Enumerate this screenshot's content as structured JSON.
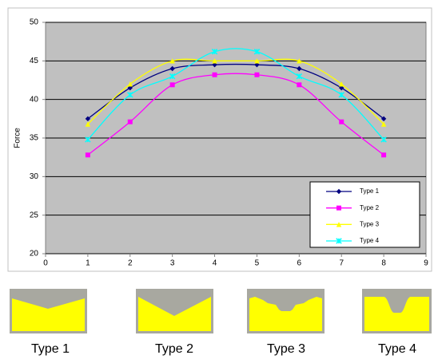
{
  "chart_data": {
    "type": "line",
    "y_label": "Force",
    "x": [
      1,
      2,
      3,
      4,
      5,
      6,
      7,
      8
    ],
    "series": [
      {
        "name": "Type 1",
        "color": "#000080",
        "marker": "diamond",
        "values": [
          37.5,
          41.5,
          44,
          44.5,
          44.5,
          44,
          41.5,
          37.5
        ]
      },
      {
        "name": "Type 2",
        "color": "#ff00ff",
        "marker": "square",
        "values": [
          32.8,
          37.1,
          41.9,
          43.2,
          43.2,
          41.9,
          37.1,
          32.8
        ]
      },
      {
        "name": "Type 3",
        "color": "#ffff00",
        "marker": "triangle",
        "values": [
          36.8,
          42,
          45,
          45,
          45,
          45,
          42,
          36.8
        ]
      },
      {
        "name": "Type 4",
        "color": "#00ffff",
        "marker": "x",
        "values": [
          34.8,
          40.6,
          43,
          46.2,
          46.2,
          43,
          40.6,
          34.8
        ]
      }
    ],
    "xlim": [
      0,
      9
    ],
    "xticks": [
      0,
      1,
      2,
      3,
      4,
      5,
      6,
      7,
      8,
      9
    ],
    "ylim": [
      20,
      50
    ],
    "yticks": [
      20,
      25,
      30,
      35,
      40,
      45,
      50
    ],
    "grid": true,
    "legend": "lower right"
  },
  "profiles": [
    "Type 1",
    "Type 2",
    "Type 3",
    "Type 4"
  ]
}
